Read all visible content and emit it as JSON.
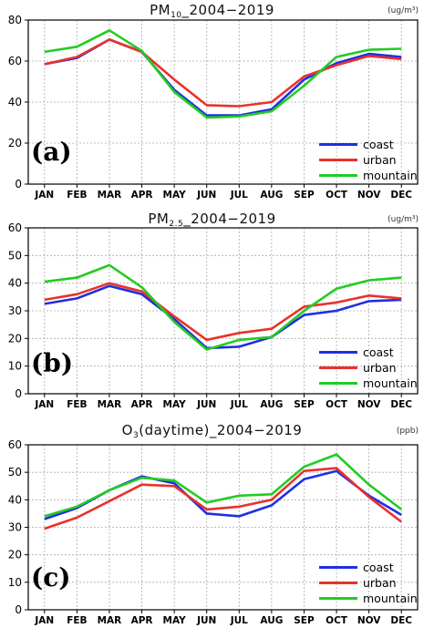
{
  "chart_data": [
    {
      "type": "line",
      "title_main": "PM",
      "title_sub": "10",
      "title_rest": "_2004−2019",
      "unit": "(ug/m³)",
      "panel_label": "(a)",
      "categories": [
        "JAN",
        "FEB",
        "MAR",
        "APR",
        "MAY",
        "JUN",
        "JUL",
        "AUG",
        "SEP",
        "OCT",
        "NOV",
        "DEC"
      ],
      "ylim": [
        0,
        80
      ],
      "yticks": [
        0,
        20,
        40,
        60,
        80
      ],
      "grid": true,
      "legend_position": "bottom-right",
      "series": [
        {
          "name": "coast",
          "color": "#1f2fe0",
          "values": [
            58.5,
            61.5,
            70.5,
            64.5,
            46,
            33.5,
            33.5,
            36.5,
            51,
            59,
            63.5,
            62
          ]
        },
        {
          "name": "urban",
          "color": "#e8322c",
          "values": [
            58.5,
            62,
            70.5,
            64.5,
            51,
            38.5,
            38,
            40,
            52.5,
            58,
            62.5,
            61
          ]
        },
        {
          "name": "mountain",
          "color": "#22cc22",
          "values": [
            64.5,
            67,
            75,
            65,
            45,
            32.5,
            33,
            35.5,
            48,
            62,
            65.5,
            66
          ]
        }
      ]
    },
    {
      "type": "line",
      "title_main": "PM",
      "title_sub": "2.5",
      "title_rest": "_2004−2019",
      "unit": "(ug/m³)",
      "panel_label": "(b)",
      "categories": [
        "JAN",
        "FEB",
        "MAR",
        "APR",
        "MAY",
        "JUN",
        "JUL",
        "AUG",
        "SEP",
        "OCT",
        "NOV",
        "DEC"
      ],
      "ylim": [
        0,
        60
      ],
      "yticks": [
        0,
        10,
        20,
        30,
        40,
        50,
        60
      ],
      "grid": true,
      "legend_position": "bottom-right",
      "series": [
        {
          "name": "coast",
          "color": "#1f2fe0",
          "values": [
            32.5,
            34.5,
            39,
            36,
            27,
            16.5,
            17,
            20.5,
            28.5,
            30,
            33.5,
            34
          ]
        },
        {
          "name": "urban",
          "color": "#e8322c",
          "values": [
            34,
            36,
            40,
            37,
            28,
            19.5,
            22,
            23.5,
            31.5,
            33,
            35.5,
            34.5
          ]
        },
        {
          "name": "mountain",
          "color": "#22cc22",
          "values": [
            40.5,
            42,
            46.5,
            38.5,
            26,
            16,
            19.5,
            20.5,
            30,
            38,
            41,
            42
          ]
        }
      ]
    },
    {
      "type": "line",
      "title_main": "O",
      "title_sub": "3",
      "title_rest": "(daytime)_2004−2019",
      "unit": "(ppb)",
      "panel_label": "(c)",
      "categories": [
        "JAN",
        "FEB",
        "MAR",
        "APR",
        "MAY",
        "JUN",
        "JUL",
        "AUG",
        "SEP",
        "OCT",
        "NOV",
        "DEC"
      ],
      "ylim": [
        0,
        60
      ],
      "yticks": [
        0,
        10,
        20,
        30,
        40,
        50,
        60
      ],
      "grid": true,
      "legend_position": "bottom-right",
      "series": [
        {
          "name": "coast",
          "color": "#1f2fe0",
          "values": [
            33,
            37,
            43.5,
            48.5,
            46,
            35,
            34,
            38,
            47.5,
            50.5,
            41.5,
            34.5
          ]
        },
        {
          "name": "urban",
          "color": "#e8322c",
          "values": [
            29.5,
            33.5,
            39.5,
            45.5,
            45,
            36.5,
            37.5,
            40,
            50.5,
            51.5,
            41,
            32
          ]
        },
        {
          "name": "mountain",
          "color": "#22cc22",
          "values": [
            34,
            37.5,
            43.5,
            48,
            47,
            39,
            41.5,
            42,
            52,
            56.5,
            45.5,
            36.5
          ]
        }
      ]
    }
  ]
}
